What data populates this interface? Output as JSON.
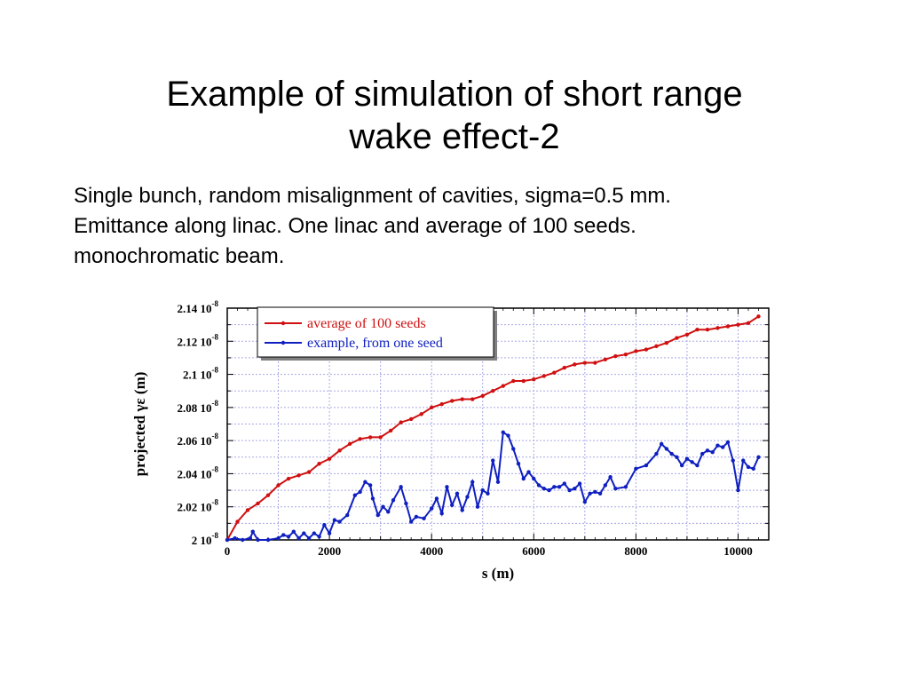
{
  "slide": {
    "title_line1": "Example of simulation of short range",
    "title_line2": "wake effect-2",
    "body": [
      "Single bunch, random misalignment of cavities, sigma=0.5 mm.",
      "Emittance along linac. One linac and average of 100 seeds.",
      "monochromatic beam."
    ]
  },
  "chart_data": {
    "type": "line",
    "xlabel": "s (m)",
    "ylabel": "projected γε  (m)",
    "xlim": [
      0,
      10600
    ],
    "ylim": [
      2.0,
      2.14
    ],
    "xticks": [
      0,
      2000,
      4000,
      6000,
      8000,
      10000
    ],
    "yticks": [
      {
        "value": 2.0,
        "mantissa": "2 10",
        "exponent": "-8"
      },
      {
        "value": 2.02,
        "mantissa": "2.02 10",
        "exponent": "-8"
      },
      {
        "value": 2.04,
        "mantissa": "2.04 10",
        "exponent": "-8"
      },
      {
        "value": 2.06,
        "mantissa": "2.06 10",
        "exponent": "-8"
      },
      {
        "value": 2.08,
        "mantissa": "2.08 10",
        "exponent": "-8"
      },
      {
        "value": 2.1,
        "mantissa": "2.1 10",
        "exponent": "-8"
      },
      {
        "value": 2.12,
        "mantissa": "2.12 10",
        "exponent": "-8"
      },
      {
        "value": 2.14,
        "mantissa": "2.14 10",
        "exponent": "-8"
      }
    ],
    "y_unit_factor": "1e-8",
    "grid": true,
    "legend_position": "top-left",
    "series": [
      {
        "name": "average of 100 seeds",
        "color": "#d01010",
        "x": [
          0,
          200,
          400,
          600,
          800,
          1000,
          1200,
          1400,
          1600,
          1800,
          2000,
          2200,
          2400,
          2600,
          2800,
          3000,
          3200,
          3400,
          3600,
          3800,
          4000,
          4200,
          4400,
          4600,
          4800,
          5000,
          5200,
          5400,
          5600,
          5800,
          6000,
          6200,
          6400,
          6600,
          6800,
          7000,
          7200,
          7400,
          7600,
          7800,
          8000,
          8200,
          8400,
          8600,
          8800,
          9000,
          9200,
          9400,
          9600,
          9800,
          10000,
          10200,
          10400
        ],
        "values": [
          2.0,
          2.011,
          2.018,
          2.022,
          2.027,
          2.033,
          2.037,
          2.039,
          2.041,
          2.046,
          2.049,
          2.054,
          2.058,
          2.061,
          2.062,
          2.062,
          2.066,
          2.071,
          2.073,
          2.076,
          2.08,
          2.082,
          2.084,
          2.085,
          2.085,
          2.087,
          2.09,
          2.093,
          2.096,
          2.096,
          2.097,
          2.099,
          2.101,
          2.104,
          2.106,
          2.107,
          2.107,
          2.109,
          2.111,
          2.112,
          2.114,
          2.115,
          2.117,
          2.119,
          2.122,
          2.124,
          2.127,
          2.127,
          2.128,
          2.129,
          2.13,
          2.131,
          2.135
        ]
      },
      {
        "name": "example, from one seed",
        "color": "#1020c0",
        "x": [
          0,
          150,
          300,
          450,
          500,
          600,
          800,
          1000,
          1100,
          1200,
          1300,
          1400,
          1500,
          1600,
          1700,
          1800,
          1900,
          2000,
          2100,
          2200,
          2350,
          2500,
          2600,
          2700,
          2800,
          2850,
          2950,
          3050,
          3150,
          3250,
          3400,
          3500,
          3600,
          3700,
          3850,
          4000,
          4100,
          4200,
          4300,
          4400,
          4500,
          4600,
          4700,
          4800,
          4900,
          5000,
          5100,
          5200,
          5300,
          5400,
          5500,
          5600,
          5700,
          5800,
          5900,
          6000,
          6100,
          6200,
          6300,
          6400,
          6500,
          6600,
          6700,
          6800,
          6900,
          7000,
          7100,
          7200,
          7300,
          7400,
          7500,
          7600,
          7800,
          8000,
          8200,
          8400,
          8500,
          8600,
          8700,
          8800,
          8900,
          9000,
          9100,
          9200,
          9300,
          9400,
          9500,
          9600,
          9700,
          9800,
          9900,
          10000,
          10100,
          10200,
          10300,
          10400
        ],
        "values": [
          2.0,
          2.001,
          2.0,
          2.001,
          2.005,
          2.0,
          2.0,
          2.001,
          2.003,
          2.002,
          2.005,
          2.001,
          2.004,
          2.001,
          2.004,
          2.002,
          2.009,
          2.004,
          2.012,
          2.011,
          2.015,
          2.027,
          2.029,
          2.035,
          2.033,
          2.025,
          2.015,
          2.02,
          2.017,
          2.024,
          2.032,
          2.022,
          2.011,
          2.014,
          2.013,
          2.019,
          2.025,
          2.016,
          2.032,
          2.021,
          2.028,
          2.018,
          2.026,
          2.035,
          2.02,
          2.03,
          2.028,
          2.048,
          2.035,
          2.065,
          2.063,
          2.055,
          2.046,
          2.037,
          2.041,
          2.037,
          2.033,
          2.031,
          2.03,
          2.032,
          2.032,
          2.034,
          2.03,
          2.031,
          2.034,
          2.023,
          2.028,
          2.029,
          2.028,
          2.033,
          2.038,
          2.031,
          2.032,
          2.043,
          2.045,
          2.052,
          2.058,
          2.055,
          2.052,
          2.05,
          2.045,
          2.049,
          2.047,
          2.045,
          2.052,
          2.054,
          2.053,
          2.057,
          2.056,
          2.059,
          2.048,
          2.03,
          2.048,
          2.044,
          2.043,
          2.05
        ]
      }
    ]
  }
}
